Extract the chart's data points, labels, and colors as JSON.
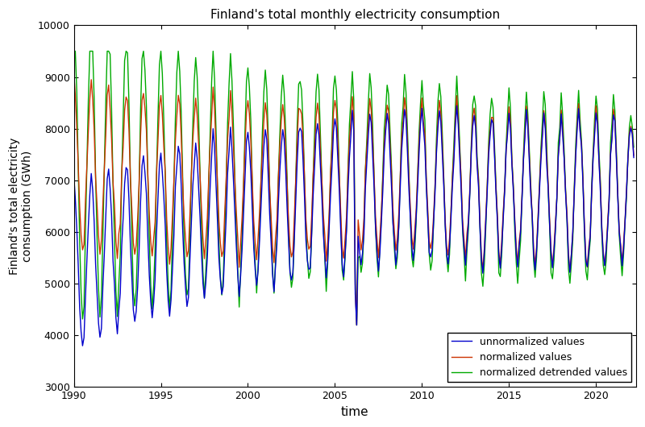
{
  "title": "Finland's total monthly electricity consumption",
  "xlabel": "time",
  "ylabel": "Finland's total electricity\nconsumption (GWh)",
  "ylim": [
    3000,
    10000
  ],
  "xlim_start": 1990.0,
  "xlim_end": 2022.3,
  "xticks": [
    1990,
    1995,
    2000,
    2005,
    2010,
    2015,
    2020
  ],
  "yticks": [
    3000,
    4000,
    5000,
    6000,
    7000,
    8000,
    9000,
    10000
  ],
  "line_unnorm_color": "#0000cc",
  "line_norm_color": "#cc3300",
  "line_detrend_color": "#00aa00",
  "legend_labels": [
    "unnormalized values",
    "normalized values",
    "normalized detrended values"
  ],
  "legend_loc": "lower right"
}
